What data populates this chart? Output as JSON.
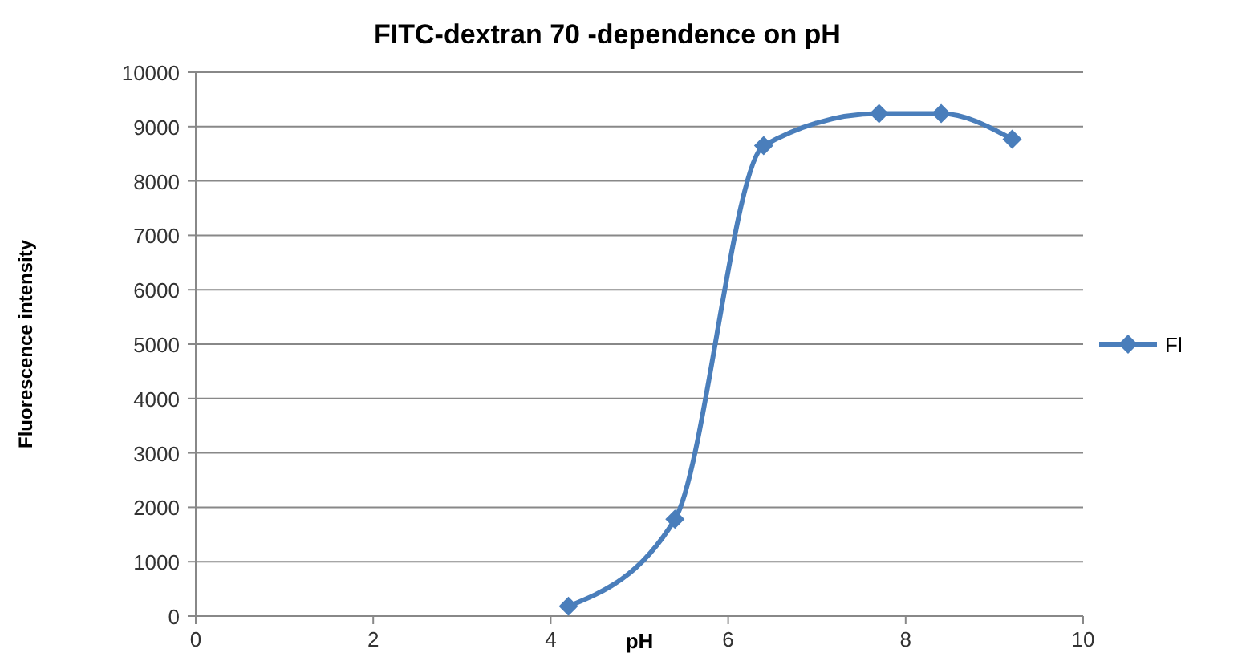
{
  "chart_data": {
    "type": "line",
    "title": "FITC-dextran 70 -dependence on pH",
    "xlabel": "pH",
    "ylabel": "Fluorescence intensity",
    "x": [
      4.2,
      5.4,
      6.4,
      7.7,
      8.4,
      9.2
    ],
    "series": [
      {
        "name": "Fl",
        "color": "#4a7ebb",
        "values": [
          180,
          1780,
          8650,
          9240,
          9240,
          8770
        ]
      }
    ],
    "xlim": [
      0,
      10
    ],
    "xticks": [
      0,
      2,
      4,
      6,
      8,
      10
    ],
    "ylim": [
      0,
      10000
    ],
    "yticks": [
      0,
      1000,
      2000,
      3000,
      4000,
      5000,
      6000,
      7000,
      8000,
      9000,
      10000
    ],
    "grid": "y",
    "legend": "right",
    "marker": "diamond",
    "line_style": "solid"
  }
}
